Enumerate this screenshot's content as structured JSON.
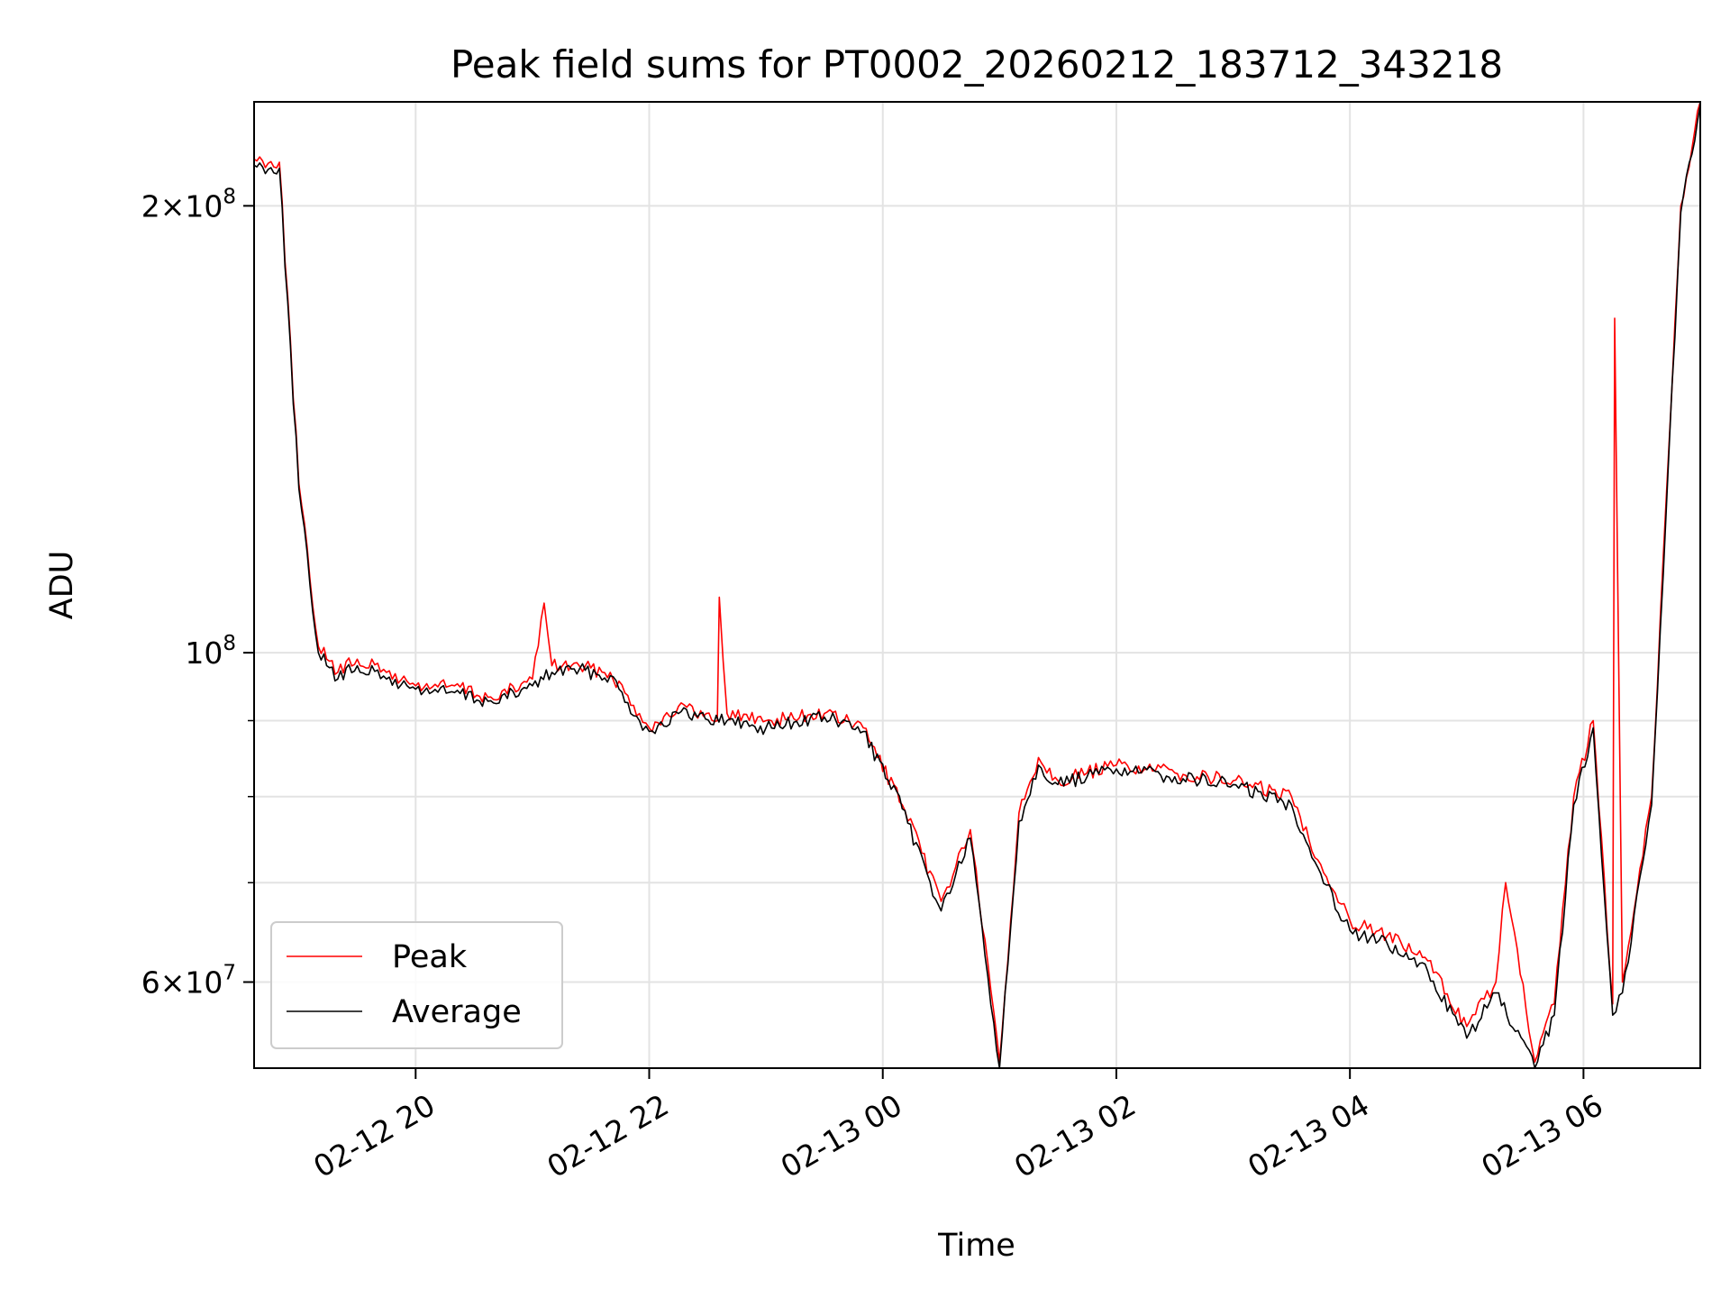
{
  "chart_data": {
    "type": "line",
    "title": "Peak field sums for PT0002_20260212_183712_343218",
    "xlabel": "Time",
    "ylabel": "ADU",
    "y_scale": "log",
    "ylim": [
      52500000,
      235000000
    ],
    "xlim": [
      "2026-02-12 18:37",
      "2026-02-13 07:00"
    ],
    "x_tick_labels": [
      "02-12 20",
      "02-12 22",
      "02-13 00",
      "02-13 02",
      "02-13 04",
      "02-13 06"
    ],
    "x_tick_times": [
      "2026-02-12 20:00",
      "2026-02-12 22:00",
      "2026-02-13 00:00",
      "2026-02-13 02:00",
      "2026-02-13 04:00",
      "2026-02-13 06:00"
    ],
    "x_tick_rotation_deg": 30,
    "y_major_ticks": [
      {
        "value": 200000000,
        "mantissa": "2",
        "exponent": "8"
      },
      {
        "value": 100000000,
        "mantissa": "",
        "exponent": "8"
      },
      {
        "value": 60000000,
        "mantissa": "6",
        "exponent": "7"
      }
    ],
    "y_minor_ticks": [
      70000000,
      80000000,
      90000000
    ],
    "grid": true,
    "legend": {
      "placement": "lower-left",
      "entries": [
        "Peak",
        "Average"
      ]
    },
    "series": [
      {
        "name": "Peak",
        "color": "#ff0000",
        "x": [
          "2026-02-12 18:37",
          "2026-02-12 18:50",
          "2026-02-12 19:00",
          "2026-02-12 19:10",
          "2026-02-12 19:20",
          "2026-02-12 19:30",
          "2026-02-12 19:45",
          "2026-02-12 20:00",
          "2026-02-12 20:20",
          "2026-02-12 20:40",
          "2026-02-12 21:00",
          "2026-02-12 21:06",
          "2026-02-12 21:10",
          "2026-02-12 21:20",
          "2026-02-12 21:40",
          "2026-02-12 21:55",
          "2026-02-12 22:00",
          "2026-02-12 22:15",
          "2026-02-12 22:35",
          "2026-02-12 22:36",
          "2026-02-12 22:40",
          "2026-02-12 23:00",
          "2026-02-12 23:30",
          "2026-02-12 23:50",
          "2026-02-13 00:10",
          "2026-02-13 00:30",
          "2026-02-13 00:45",
          "2026-02-13 01:00",
          "2026-02-13 01:10",
          "2026-02-13 01:20",
          "2026-02-13 01:30",
          "2026-02-13 01:45",
          "2026-02-13 02:00",
          "2026-02-13 02:30",
          "2026-02-13 03:00",
          "2026-02-13 03:30",
          "2026-02-13 03:45",
          "2026-02-13 04:00",
          "2026-02-13 04:15",
          "2026-02-13 04:40",
          "2026-02-13 05:00",
          "2026-02-13 05:15",
          "2026-02-13 05:20",
          "2026-02-13 05:35",
          "2026-02-13 05:45",
          "2026-02-13 05:55",
          "2026-02-13 06:05",
          "2026-02-13 06:15",
          "2026-02-13 06:16",
          "2026-02-13 06:20",
          "2026-02-13 06:35",
          "2026-02-13 06:50",
          "2026-02-13 07:00"
        ],
        "values": [
          215000000,
          214000000,
          130000000,
          101000000,
          97000000,
          99000000,
          97000000,
          95000000,
          95000000,
          93000000,
          96000000,
          108000000,
          98000000,
          98000000,
          97000000,
          91000000,
          89000000,
          92000000,
          90000000,
          109000000,
          91000000,
          90000000,
          91000000,
          89000000,
          79000000,
          68000000,
          76000000,
          53000000,
          78000000,
          85000000,
          82000000,
          83000000,
          84000000,
          83000000,
          82000000,
          80000000,
          72000000,
          66000000,
          65000000,
          62000000,
          56000000,
          60000000,
          70000000,
          53000000,
          58000000,
          80000000,
          90000000,
          58000000,
          168000000,
          60000000,
          80000000,
          200000000,
          235000000
        ]
      },
      {
        "name": "Average",
        "color": "#000000",
        "x": [
          "2026-02-12 18:37",
          "2026-02-12 18:50",
          "2026-02-12 19:00",
          "2026-02-12 19:10",
          "2026-02-12 19:20",
          "2026-02-12 19:30",
          "2026-02-12 19:45",
          "2026-02-12 20:00",
          "2026-02-12 20:20",
          "2026-02-12 20:40",
          "2026-02-12 21:00",
          "2026-02-12 21:10",
          "2026-02-12 21:20",
          "2026-02-12 21:40",
          "2026-02-12 21:55",
          "2026-02-12 22:00",
          "2026-02-12 22:15",
          "2026-02-12 22:40",
          "2026-02-12 23:00",
          "2026-02-12 23:30",
          "2026-02-12 23:50",
          "2026-02-13 00:10",
          "2026-02-13 00:30",
          "2026-02-13 00:45",
          "2026-02-13 01:00",
          "2026-02-13 01:10",
          "2026-02-13 01:20",
          "2026-02-13 01:30",
          "2026-02-13 01:45",
          "2026-02-13 02:00",
          "2026-02-13 02:30",
          "2026-02-13 03:00",
          "2026-02-13 03:30",
          "2026-02-13 03:45",
          "2026-02-13 04:00",
          "2026-02-13 04:15",
          "2026-02-13 04:40",
          "2026-02-13 05:00",
          "2026-02-13 05:15",
          "2026-02-13 05:35",
          "2026-02-13 05:45",
          "2026-02-13 05:55",
          "2026-02-13 06:05",
          "2026-02-13 06:15",
          "2026-02-13 06:20",
          "2026-02-13 06:35",
          "2026-02-13 06:50",
          "2026-02-13 07:00"
        ],
        "values": [
          213000000,
          212000000,
          129000000,
          100000000,
          96000000,
          98000000,
          96000000,
          94500000,
          94000000,
          92500000,
          95000000,
          97000000,
          97500000,
          96500000,
          90000000,
          88500000,
          91000000,
          90000000,
          89000000,
          90500000,
          88500000,
          78500000,
          67000000,
          75000000,
          52500000,
          77000000,
          84000000,
          81500000,
          82500000,
          83500000,
          82500000,
          81500000,
          79000000,
          71000000,
          65000000,
          64000000,
          61000000,
          55000000,
          59000000,
          52500000,
          57000000,
          79000000,
          89000000,
          57000000,
          59000000,
          79000000,
          198000000,
          234000000
        ]
      }
    ]
  }
}
